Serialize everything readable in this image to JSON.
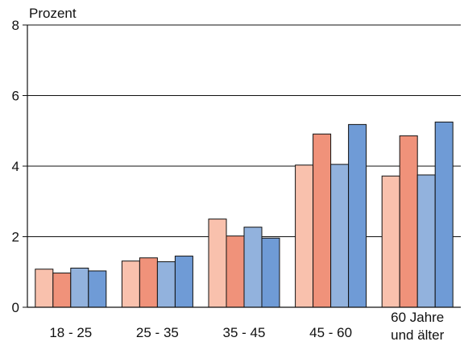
{
  "chart_data": {
    "type": "bar",
    "ylabel": "Prozent",
    "ylim": [
      0,
      8
    ],
    "yticks": [
      0,
      2,
      4,
      6,
      8
    ],
    "grid": "horizontal",
    "categories": [
      "18 - 25",
      "25 - 35",
      "35 - 45",
      "45 - 60",
      "60 Jahre und älter"
    ],
    "series": [
      {
        "values": [
          1.08,
          1.31,
          2.5,
          4.03,
          3.72
        ]
      },
      {
        "values": [
          0.97,
          1.4,
          2.02,
          4.91,
          4.86
        ]
      },
      {
        "values": [
          1.11,
          1.29,
          2.27,
          4.05,
          3.75
        ]
      },
      {
        "values": [
          1.03,
          1.45,
          1.96,
          5.18,
          5.25
        ]
      }
    ],
    "colors": [
      "#f9c1ad",
      "#f0927a",
      "#92b2dd",
      "#6f9bd6"
    ]
  }
}
